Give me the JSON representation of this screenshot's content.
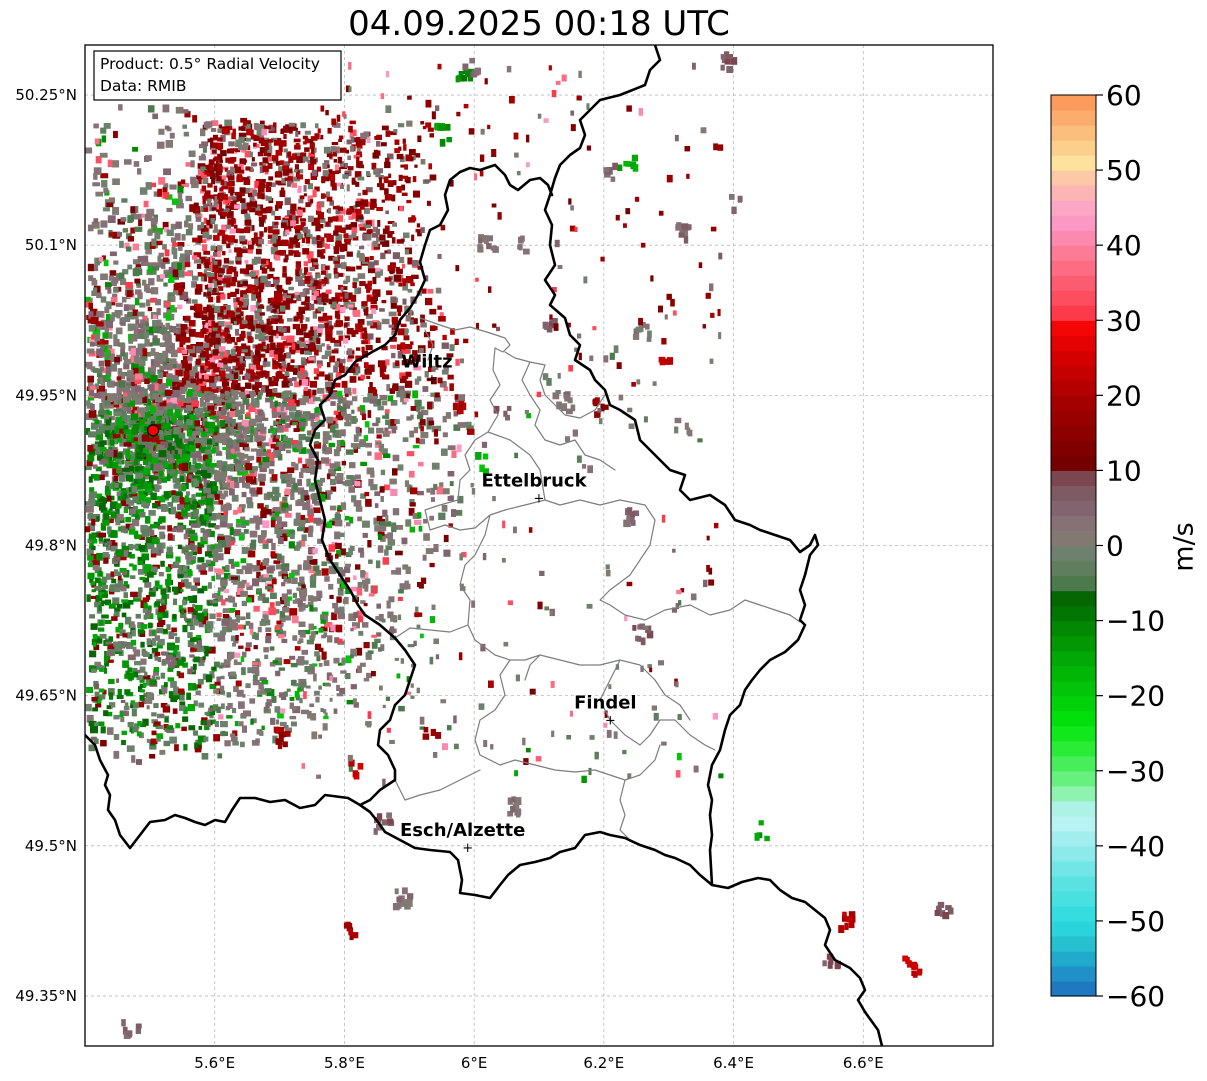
{
  "title": "04.09.2025 00:18 UTC",
  "info_box": {
    "product": "Product: 0.5° Radial Velocity",
    "source": "Data: RMIB"
  },
  "map": {
    "lon_range": [
      5.4,
      6.8
    ],
    "lat_range": [
      49.3,
      50.3
    ],
    "lon_ticks": [
      {
        "value": 5.6,
        "label": "5.6°E"
      },
      {
        "value": 5.8,
        "label": "5.8°E"
      },
      {
        "value": 6.0,
        "label": "6°E"
      },
      {
        "value": 6.2,
        "label": "6.2°E"
      },
      {
        "value": 6.4,
        "label": "6.4°E"
      },
      {
        "value": 6.6,
        "label": "6.6°E"
      }
    ],
    "lat_ticks": [
      {
        "value": 49.35,
        "label": "49.35°N"
      },
      {
        "value": 49.5,
        "label": "49.5°N"
      },
      {
        "value": 49.65,
        "label": "49.65°N"
      },
      {
        "value": 49.8,
        "label": "49.8°N"
      },
      {
        "value": 49.95,
        "label": "49.95°N"
      },
      {
        "value": 50.1,
        "label": "50.1°N"
      },
      {
        "value": 50.25,
        "label": "50.25°N"
      }
    ],
    "radar_site": {
      "lon": 5.505,
      "lat": 49.915,
      "color": "#ff0000"
    },
    "cities": [
      {
        "name": "Wiltz",
        "lon": 5.935,
        "lat": 49.967
      },
      {
        "name": "Ettelbruck",
        "lon": 6.1,
        "lat": 49.848
      },
      {
        "name": "Findel",
        "lon": 6.21,
        "lat": 49.626
      },
      {
        "name": "Esch/Alzette",
        "lon": 5.99,
        "lat": 49.499
      }
    ]
  },
  "colorbar": {
    "label": "m/s",
    "vmin": -60,
    "vmax": 60,
    "ticks": [
      {
        "value": 60,
        "label": "60"
      },
      {
        "value": 50,
        "label": "50"
      },
      {
        "value": 40,
        "label": "40"
      },
      {
        "value": 30,
        "label": "30"
      },
      {
        "value": 20,
        "label": "20"
      },
      {
        "value": 10,
        "label": "10"
      },
      {
        "value": 0,
        "label": "0"
      },
      {
        "value": -10,
        "label": "−10"
      },
      {
        "value": -20,
        "label": "−20"
      },
      {
        "value": -30,
        "label": "−30"
      },
      {
        "value": -40,
        "label": "−40"
      },
      {
        "value": -50,
        "label": "−50"
      },
      {
        "value": -60,
        "label": "−60"
      }
    ],
    "bands": [
      {
        "from": -60,
        "to": -58,
        "color": "#1f78c0"
      },
      {
        "from": -58,
        "to": -56,
        "color": "#2090c8"
      },
      {
        "from": -56,
        "to": -54,
        "color": "#22aacc"
      },
      {
        "from": -54,
        "to": -52,
        "color": "#26c0d0"
      },
      {
        "from": -52,
        "to": -50,
        "color": "#2ad4dc"
      },
      {
        "from": -50,
        "to": -48,
        "color": "#36dde0"
      },
      {
        "from": -48,
        "to": -46,
        "color": "#48e0e0"
      },
      {
        "from": -46,
        "to": -44,
        "color": "#5ae2e2"
      },
      {
        "from": -44,
        "to": -42,
        "color": "#72e6e6"
      },
      {
        "from": -42,
        "to": -40,
        "color": "#8ceaea"
      },
      {
        "from": -40,
        "to": -38,
        "color": "#a2eeee"
      },
      {
        "from": -38,
        "to": -36,
        "color": "#b8f2f2"
      },
      {
        "from": -36,
        "to": -34,
        "color": "#aef2e6"
      },
      {
        "from": -34,
        "to": -32,
        "color": "#8ef2b0"
      },
      {
        "from": -32,
        "to": -30,
        "color": "#66f07e"
      },
      {
        "from": -30,
        "to": -28,
        "color": "#48ee5a"
      },
      {
        "from": -28,
        "to": -26,
        "color": "#2aec36"
      },
      {
        "from": -26,
        "to": -24,
        "color": "#10e81c"
      },
      {
        "from": -24,
        "to": -22,
        "color": "#02e00c"
      },
      {
        "from": -22,
        "to": -20,
        "color": "#02d20a"
      },
      {
        "from": -20,
        "to": -18,
        "color": "#02c408"
      },
      {
        "from": -18,
        "to": -16,
        "color": "#02b606"
      },
      {
        "from": -16,
        "to": -14,
        "color": "#02a805"
      },
      {
        "from": -14,
        "to": -12,
        "color": "#029804"
      },
      {
        "from": -12,
        "to": -10,
        "color": "#028803"
      },
      {
        "from": -10,
        "to": -8,
        "color": "#027602"
      },
      {
        "from": -8,
        "to": -6,
        "color": "#066602"
      },
      {
        "from": -6,
        "to": -4,
        "color": "#4c7a4c"
      },
      {
        "from": -4,
        "to": -2,
        "color": "#5e7e5e"
      },
      {
        "from": -2,
        "to": 0,
        "color": "#6e806e"
      },
      {
        "from": 0,
        "to": 2,
        "color": "#827a72"
      },
      {
        "from": 2,
        "to": 4,
        "color": "#867276"
      },
      {
        "from": 4,
        "to": 6,
        "color": "#826470"
      },
      {
        "from": 6,
        "to": 8,
        "color": "#7e5a62"
      },
      {
        "from": 8,
        "to": 10,
        "color": "#7c4650"
      },
      {
        "from": 10,
        "to": 12,
        "color": "#740000"
      },
      {
        "from": 12,
        "to": 14,
        "color": "#800000"
      },
      {
        "from": 14,
        "to": 16,
        "color": "#8c0000"
      },
      {
        "from": 16,
        "to": 18,
        "color": "#980000"
      },
      {
        "from": 18,
        "to": 20,
        "color": "#a40000"
      },
      {
        "from": 20,
        "to": 22,
        "color": "#b40000"
      },
      {
        "from": 22,
        "to": 24,
        "color": "#c40000"
      },
      {
        "from": 24,
        "to": 26,
        "color": "#d40000"
      },
      {
        "from": 26,
        "to": 28,
        "color": "#e40202"
      },
      {
        "from": 28,
        "to": 30,
        "color": "#f40606"
      },
      {
        "from": 30,
        "to": 32,
        "color": "#fc3a4a"
      },
      {
        "from": 32,
        "to": 34,
        "color": "#fc4e5e"
      },
      {
        "from": 34,
        "to": 36,
        "color": "#fc5c70"
      },
      {
        "from": 36,
        "to": 38,
        "color": "#fc6c82"
      },
      {
        "from": 38,
        "to": 40,
        "color": "#fc7c96"
      },
      {
        "from": 40,
        "to": 42,
        "color": "#fc8ab0"
      },
      {
        "from": 42,
        "to": 44,
        "color": "#fc98c4"
      },
      {
        "from": 44,
        "to": 46,
        "color": "#fca6c6"
      },
      {
        "from": 46,
        "to": 48,
        "color": "#fcb4b4"
      },
      {
        "from": 48,
        "to": 50,
        "color": "#fcc8a8"
      },
      {
        "from": 50,
        "to": 52,
        "color": "#fce29c"
      },
      {
        "from": 52,
        "to": 54,
        "color": "#fcd08c"
      },
      {
        "from": 54,
        "to": 56,
        "color": "#fcbe7c"
      },
      {
        "from": 56,
        "to": 58,
        "color": "#fcac6c"
      },
      {
        "from": 58,
        "to": 60,
        "color": "#fc9c5c"
      }
    ]
  }
}
